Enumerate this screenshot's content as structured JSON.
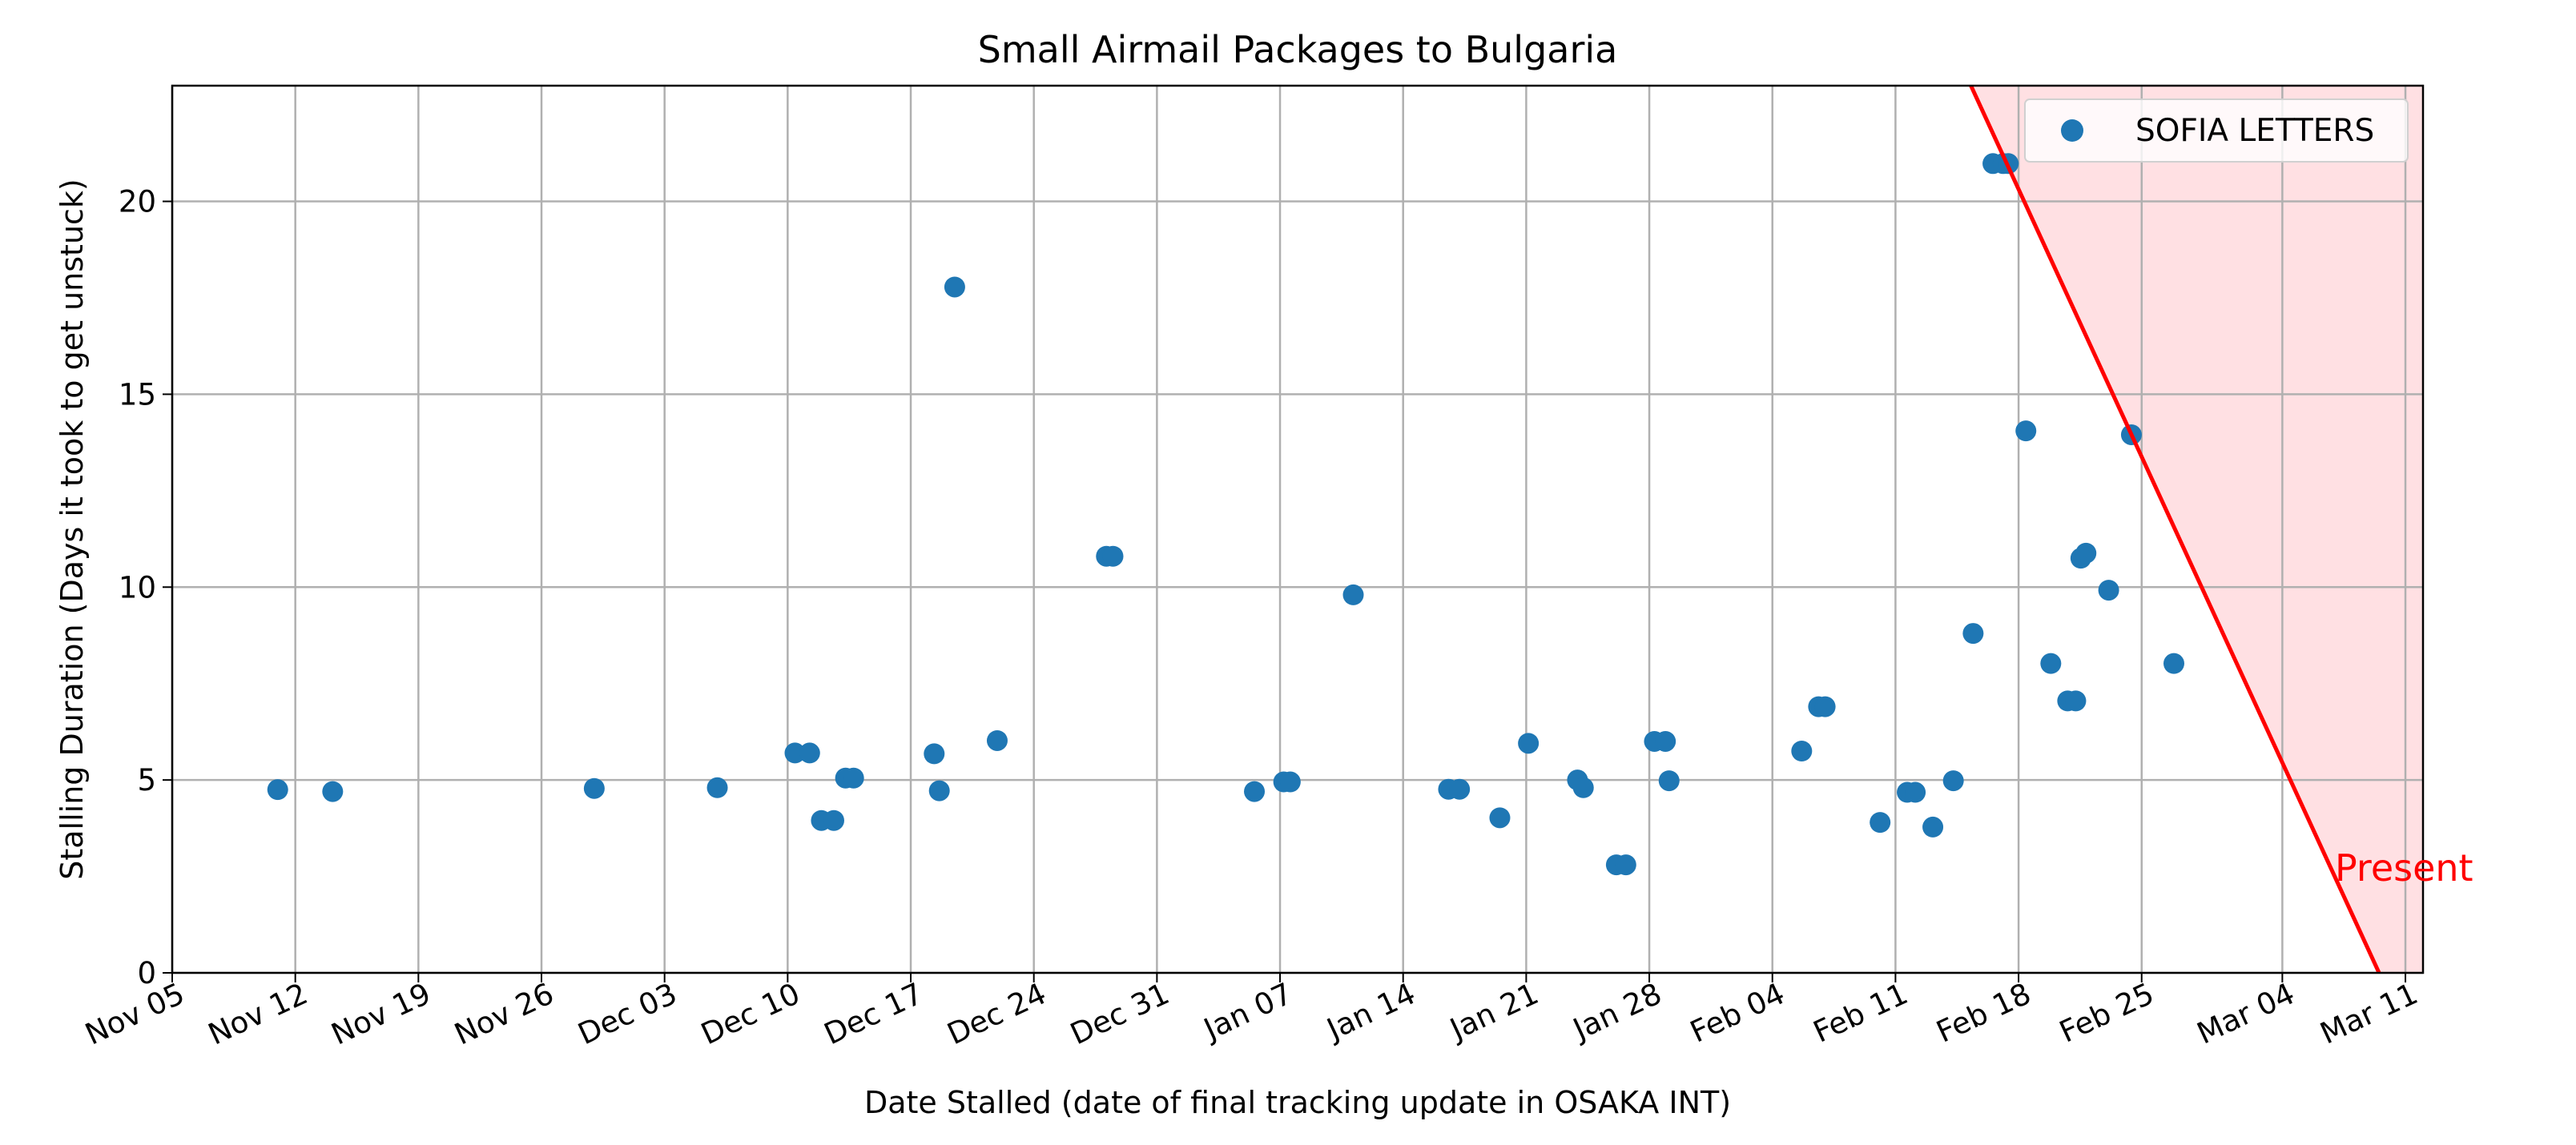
{
  "chart_data": {
    "type": "scatter",
    "title": "Small Airmail Packages to Bulgaria",
    "xlabel": "Date Stalled (date of final tracking update in OSAKA INT)",
    "ylabel": "Stalling Duration (Days it took to get unstuck)",
    "x_axis_type": "date",
    "xlim": [
      "2023-11-05",
      "2024-03-12"
    ],
    "ylim": [
      0,
      23
    ],
    "x_ticks": [
      "2023-11-05",
      "2023-11-12",
      "2023-11-19",
      "2023-11-26",
      "2023-12-03",
      "2023-12-10",
      "2023-12-17",
      "2023-12-24",
      "2023-12-31",
      "2024-01-07",
      "2024-01-14",
      "2024-01-21",
      "2024-01-28",
      "2024-02-04",
      "2024-02-11",
      "2024-02-18",
      "2024-02-25",
      "2024-03-04",
      "2024-03-11"
    ],
    "x_tick_labels": [
      "Nov 05",
      "Nov 12",
      "Nov 19",
      "Nov 26",
      "Dec 03",
      "Dec 10",
      "Dec 17",
      "Dec 24",
      "Dec 31",
      "Jan 07",
      "Jan 14",
      "Jan 21",
      "Jan 28",
      "Feb 04",
      "Feb 11",
      "Feb 18",
      "Feb 25",
      "Mar 04",
      "Mar 11"
    ],
    "y_ticks": [
      0,
      5,
      10,
      15,
      20
    ],
    "grid": true,
    "legend_position": "top-right",
    "series": [
      {
        "name": "SOFIA LETTERS",
        "color": "#1f77b4",
        "points": [
          {
            "x": "2023-11-11T00:00",
            "y": 4.75
          },
          {
            "x": "2023-11-14T03:00",
            "y": 4.7
          },
          {
            "x": "2023-11-29T00:00",
            "y": 4.78
          },
          {
            "x": "2023-12-06T00:00",
            "y": 4.8
          },
          {
            "x": "2023-12-10T10:00",
            "y": 5.7
          },
          {
            "x": "2023-12-11T06:00",
            "y": 5.7
          },
          {
            "x": "2023-12-11T22:00",
            "y": 3.95
          },
          {
            "x": "2023-12-12T15:00",
            "y": 3.95
          },
          {
            "x": "2023-12-13T07:00",
            "y": 5.05
          },
          {
            "x": "2023-12-13T18:00",
            "y": 5.05
          },
          {
            "x": "2023-12-18T08:00",
            "y": 5.68
          },
          {
            "x": "2023-12-18T15:00",
            "y": 4.72
          },
          {
            "x": "2023-12-19T12:00",
            "y": 17.78
          },
          {
            "x": "2023-12-21T22:00",
            "y": 6.02
          },
          {
            "x": "2023-12-28T03:00",
            "y": 10.8
          },
          {
            "x": "2023-12-28T12:00",
            "y": 10.8
          },
          {
            "x": "2024-01-05T13:00",
            "y": 4.7
          },
          {
            "x": "2024-01-07T05:00",
            "y": 4.95
          },
          {
            "x": "2024-01-07T14:00",
            "y": 4.95
          },
          {
            "x": "2024-01-11T04:00",
            "y": 9.8
          },
          {
            "x": "2024-01-16T14:00",
            "y": 4.76
          },
          {
            "x": "2024-01-17T05:00",
            "y": 4.76
          },
          {
            "x": "2024-01-19T12:00",
            "y": 4.02
          },
          {
            "x": "2024-01-21T03:00",
            "y": 5.95
          },
          {
            "x": "2024-01-23T22:00",
            "y": 5.0
          },
          {
            "x": "2024-01-24T06:00",
            "y": 4.8
          },
          {
            "x": "2024-01-26T03:00",
            "y": 2.8
          },
          {
            "x": "2024-01-26T16:00",
            "y": 2.8
          },
          {
            "x": "2024-01-28T07:00",
            "y": 6.0
          },
          {
            "x": "2024-01-28T22:00",
            "y": 6.0
          },
          {
            "x": "2024-01-29T03:00",
            "y": 4.98
          },
          {
            "x": "2024-02-05T16:00",
            "y": 5.75
          },
          {
            "x": "2024-02-06T15:00",
            "y": 6.9
          },
          {
            "x": "2024-02-07T00:00",
            "y": 6.9
          },
          {
            "x": "2024-02-10T03:00",
            "y": 3.9
          },
          {
            "x": "2024-02-11T16:00",
            "y": 4.68
          },
          {
            "x": "2024-02-12T03:00",
            "y": 4.68
          },
          {
            "x": "2024-02-13T03:00",
            "y": 3.78
          },
          {
            "x": "2024-02-14T07:00",
            "y": 4.98
          },
          {
            "x": "2024-02-15T10:00",
            "y": 8.8
          },
          {
            "x": "2024-02-16T13:00",
            "y": 20.98
          },
          {
            "x": "2024-02-17T03:00",
            "y": 20.98
          },
          {
            "x": "2024-02-17T10:00",
            "y": 20.98
          },
          {
            "x": "2024-02-18T10:00",
            "y": 14.05
          },
          {
            "x": "2024-02-19T20:00",
            "y": 8.02
          },
          {
            "x": "2024-02-20T19:00",
            "y": 7.05
          },
          {
            "x": "2024-02-21T06:00",
            "y": 7.05
          },
          {
            "x": "2024-02-21T13:00",
            "y": 10.75
          },
          {
            "x": "2024-02-21T20:00",
            "y": 10.88
          },
          {
            "x": "2024-02-23T03:00",
            "y": 9.92
          },
          {
            "x": "2024-02-24T10:00",
            "y": 13.95
          },
          {
            "x": "2024-02-26T20:00",
            "y": 8.02
          }
        ]
      }
    ],
    "present_region": {
      "label": "Present",
      "line_color": "#ff0000",
      "fill_color": "#ffe0e3",
      "line_top": {
        "x": "2024-02-15T07:00",
        "y": 23
      },
      "line_bottom": {
        "x": "2024-03-09T12:00",
        "y": 0
      }
    }
  }
}
